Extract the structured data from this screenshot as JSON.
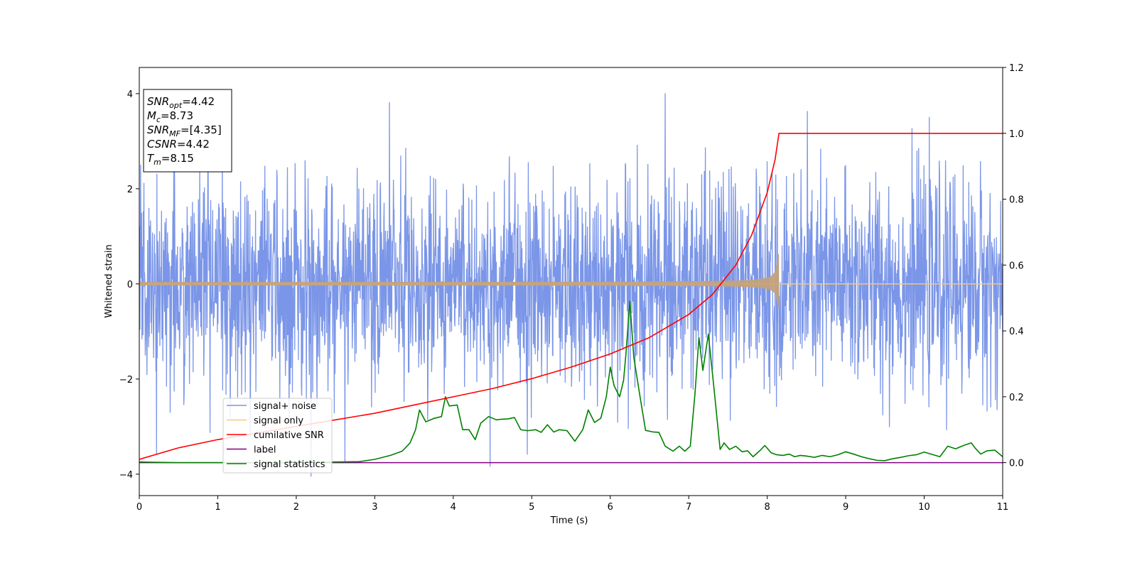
{
  "chart_data": {
    "type": "line",
    "xlabel": "Time (s)",
    "ylabel": "Whitened strain",
    "xlim": [
      0,
      11
    ],
    "ylim_left": [
      -4.45,
      4.55
    ],
    "ylim_right": [
      -0.1,
      1.2
    ],
    "x_ticks": [
      0,
      1,
      2,
      3,
      4,
      5,
      6,
      7,
      8,
      9,
      10,
      11
    ],
    "y_ticks_left": [
      -4,
      -2,
      0,
      2,
      4
    ],
    "y_ticks_right": [
      0.0,
      0.2,
      0.4,
      0.6,
      0.8,
      1.0,
      1.2
    ],
    "x_tick_labels": [
      "0",
      "1",
      "2",
      "3",
      "4",
      "5",
      "6",
      "7",
      "8",
      "9",
      "10",
      "11"
    ],
    "y_tick_labels_left": [
      "−4",
      "−2",
      "0",
      "2",
      "4"
    ],
    "y_tick_labels_right": [
      "0.0",
      "0.2",
      "0.4",
      "0.6",
      "0.8",
      "1.0",
      "1.2"
    ],
    "grid": false,
    "legend_position": "lower-left",
    "info_box": {
      "lines": [
        {
          "sym": "SNR",
          "sub": "opt",
          "value": "=4.42"
        },
        {
          "sym": "M",
          "sub": "c",
          "value": "=8.73"
        },
        {
          "sym": "SNR",
          "sub": "MF",
          "value": "=[4.35]"
        },
        {
          "sym": "CSNR",
          "sub": "",
          "value": "=4.42"
        },
        {
          "sym": "T",
          "sub": "m",
          "value": "=8.15"
        }
      ]
    },
    "series": [
      {
        "name": "signal+ noise",
        "color": "#7b96e8",
        "axis": "left",
        "kind": "noise",
        "std": 1.1,
        "range": [
          -4.05,
          4.15
        ]
      },
      {
        "name": "signal only",
        "color": "#f5c87a",
        "axis": "left",
        "kind": "chirp",
        "merger_time": 8.15,
        "peak_amplitude": 0.66,
        "peak_negative": -0.5
      },
      {
        "name": "cumilative SNR",
        "color": "#ff0000",
        "axis": "right",
        "x": [
          0,
          0.5,
          1,
          1.5,
          2,
          2.5,
          3,
          3.5,
          4,
          4.5,
          5,
          5.5,
          6,
          6.5,
          7,
          7.3,
          7.6,
          7.8,
          8.0,
          8.1,
          8.15,
          8.2,
          9,
          10,
          11
        ],
        "y": [
          0.01,
          0.045,
          0.07,
          0.09,
          0.11,
          0.13,
          0.15,
          0.175,
          0.2,
          0.225,
          0.255,
          0.29,
          0.33,
          0.38,
          0.45,
          0.51,
          0.6,
          0.69,
          0.82,
          0.92,
          1.0,
          1.0,
          1.0,
          1.0,
          1.0
        ]
      },
      {
        "name": "label",
        "color": "#800080",
        "axis": "right",
        "x": [
          0,
          11
        ],
        "y": [
          0.0,
          0.0
        ]
      },
      {
        "name": "signal statistics",
        "color": "#008000",
        "axis": "right",
        "x": [
          0,
          0.5,
          1,
          1.5,
          2,
          2.5,
          2.8,
          3.0,
          3.2,
          3.35,
          3.45,
          3.52,
          3.57,
          3.65,
          3.75,
          3.85,
          3.9,
          3.95,
          4.05,
          4.12,
          4.2,
          4.28,
          4.35,
          4.45,
          4.55,
          4.62,
          4.7,
          4.78,
          4.86,
          4.95,
          5.05,
          5.12,
          5.2,
          5.28,
          5.35,
          5.45,
          5.55,
          5.65,
          5.72,
          5.8,
          5.88,
          5.95,
          6.0,
          6.05,
          6.12,
          6.17,
          6.2,
          6.25,
          6.3,
          6.38,
          6.45,
          6.55,
          6.62,
          6.7,
          6.8,
          6.88,
          6.95,
          7.02,
          7.08,
          7.13,
          7.18,
          7.25,
          7.32,
          7.4,
          7.45,
          7.52,
          7.6,
          7.68,
          7.75,
          7.82,
          7.9,
          7.97,
          8.05,
          8.12,
          8.2,
          8.28,
          8.35,
          8.42,
          8.5,
          8.6,
          8.7,
          8.8,
          8.9,
          9.0,
          9.1,
          9.2,
          9.3,
          9.4,
          9.5,
          9.6,
          9.7,
          9.8,
          9.9,
          10.0,
          10.1,
          10.2,
          10.3,
          10.4,
          10.5,
          10.6,
          10.65,
          10.72,
          10.8,
          10.9,
          11.0
        ],
        "y": [
          0.002,
          0.0,
          0.0,
          0.0,
          0.0,
          0.002,
          0.003,
          0.01,
          0.022,
          0.035,
          0.06,
          0.1,
          0.16,
          0.124,
          0.134,
          0.14,
          0.2,
          0.172,
          0.175,
          0.1,
          0.1,
          0.07,
          0.12,
          0.14,
          0.13,
          0.132,
          0.133,
          0.137,
          0.1,
          0.097,
          0.1,
          0.092,
          0.115,
          0.093,
          0.1,
          0.097,
          0.065,
          0.1,
          0.16,
          0.122,
          0.135,
          0.2,
          0.29,
          0.233,
          0.2,
          0.25,
          0.33,
          0.49,
          0.32,
          0.2,
          0.098,
          0.093,
          0.092,
          0.05,
          0.035,
          0.05,
          0.035,
          0.05,
          0.21,
          0.38,
          0.28,
          0.39,
          0.23,
          0.04,
          0.06,
          0.04,
          0.05,
          0.033,
          0.036,
          0.018,
          0.035,
          0.052,
          0.03,
          0.024,
          0.022,
          0.026,
          0.018,
          0.022,
          0.02,
          0.016,
          0.022,
          0.018,
          0.024,
          0.033,
          0.026,
          0.018,
          0.012,
          0.007,
          0.006,
          0.012,
          0.016,
          0.021,
          0.024,
          0.032,
          0.025,
          0.018,
          0.05,
          0.042,
          0.052,
          0.06,
          0.044,
          0.026,
          0.036,
          0.038,
          0.018
        ]
      }
    ]
  }
}
